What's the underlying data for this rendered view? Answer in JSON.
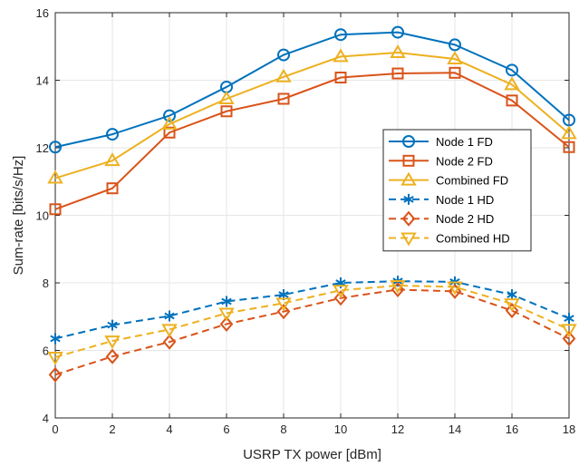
{
  "chart_data": {
    "type": "line",
    "xlabel": "USRP TX power [dBm]",
    "ylabel": "Sum-rate [bits/s/Hz]",
    "xlim": [
      0,
      18
    ],
    "ylim": [
      4,
      16
    ],
    "x_ticks": [
      0,
      2,
      4,
      6,
      8,
      10,
      12,
      14,
      16,
      18
    ],
    "y_ticks": [
      4,
      6,
      8,
      10,
      12,
      14,
      16
    ],
    "grid": true,
    "legend_position": "right",
    "x": [
      0,
      2,
      4,
      6,
      8,
      10,
      12,
      14,
      16,
      18
    ],
    "series": [
      {
        "name": "Node 1 FD",
        "color": "#0072BD",
        "marker": "circle",
        "line_style": "solid",
        "values": [
          12.02,
          12.4,
          12.95,
          13.8,
          14.75,
          15.35,
          15.42,
          15.05,
          14.3,
          12.82
        ]
      },
      {
        "name": "Node 2 FD",
        "color": "#D95319",
        "marker": "square",
        "line_style": "solid",
        "values": [
          10.18,
          10.8,
          12.45,
          13.08,
          13.45,
          14.08,
          14.2,
          14.22,
          13.4,
          12.02
        ]
      },
      {
        "name": "Combined FD",
        "color": "#EDB120",
        "marker": "triangle-up",
        "line_style": "solid",
        "values": [
          11.1,
          11.62,
          12.7,
          13.45,
          14.1,
          14.7,
          14.82,
          14.63,
          13.87,
          12.42
        ]
      },
      {
        "name": "Node 1 HD",
        "color": "#0072BD",
        "marker": "asterisk",
        "line_style": "dashed",
        "values": [
          6.35,
          6.75,
          7.02,
          7.45,
          7.65,
          8.0,
          8.05,
          8.03,
          7.65,
          6.95
        ]
      },
      {
        "name": "Node 2 HD",
        "color": "#D95319",
        "marker": "diamond",
        "line_style": "dashed",
        "values": [
          5.28,
          5.82,
          6.25,
          6.78,
          7.15,
          7.55,
          7.8,
          7.75,
          7.18,
          6.35
        ]
      },
      {
        "name": "Combined HD",
        "color": "#EDB120",
        "marker": "triangle-down",
        "line_style": "dashed",
        "values": [
          5.8,
          6.28,
          6.62,
          7.1,
          7.4,
          7.78,
          7.92,
          7.88,
          7.38,
          6.62
        ]
      }
    ]
  }
}
